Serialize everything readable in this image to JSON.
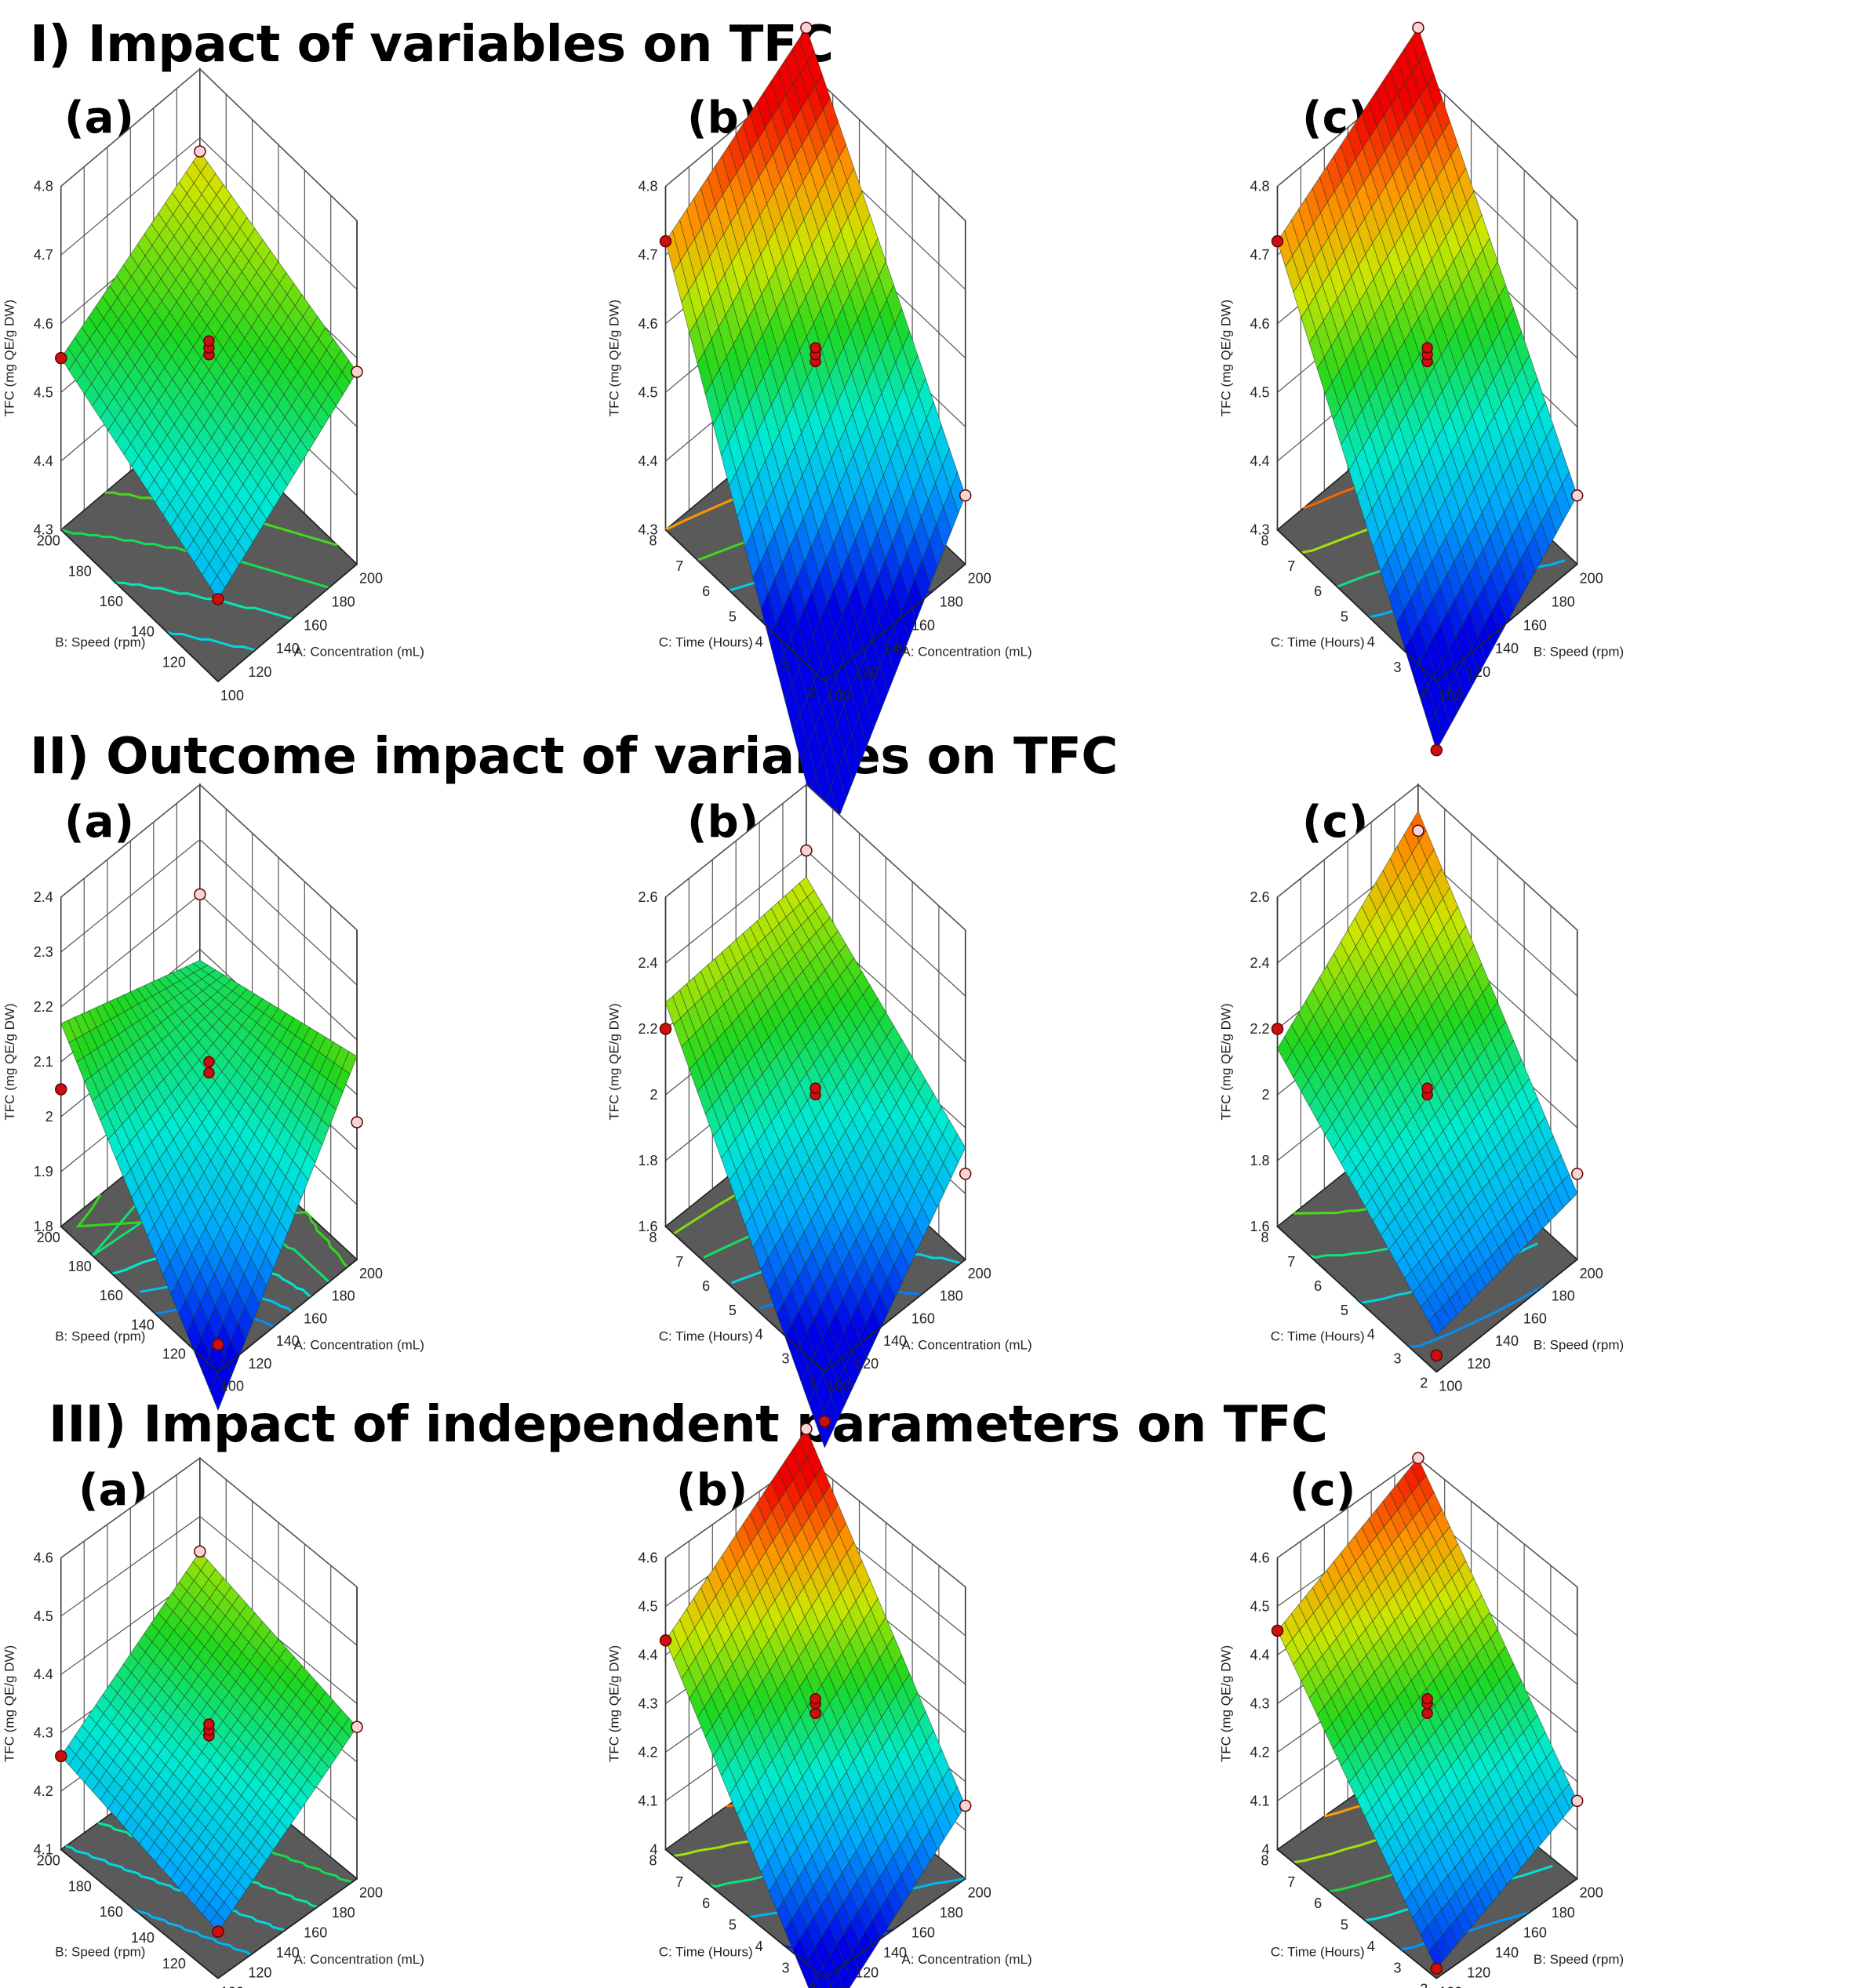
{
  "sections": [
    {
      "heading": "I) Impact of variables on TFC",
      "panels": [
        {
          "letter": "(a)",
          "x_label": "A: Concentration (mL)",
          "y_label": "B: Speed (rpm)",
          "z_label": "TFC (mg QE/g DW)",
          "x_ticks": [
            "100",
            "120",
            "140",
            "160",
            "180",
            "200"
          ],
          "y_ticks": [
            "120",
            "140",
            "160",
            "180",
            "200"
          ],
          "z_ticks": [
            "4.3",
            "4.4",
            "4.5",
            "4.6",
            "4.7",
            "4.8"
          ]
        },
        {
          "letter": "(b)",
          "x_label": "A: Concentration (mL)",
          "y_label": "C: Time (Hours)",
          "z_label": "TFC (mg QE/g DW)",
          "x_ticks": [
            "100",
            "120",
            "140",
            "160",
            "180",
            "200"
          ],
          "y_ticks": [
            "2",
            "3",
            "4",
            "5",
            "6",
            "7",
            "8"
          ],
          "z_ticks": [
            "4.3",
            "4.4",
            "4.5",
            "4.6",
            "4.7",
            "4.8"
          ]
        },
        {
          "letter": "(c)",
          "x_label": "B: Speed (rpm)",
          "y_label": "C: Time (Hours)",
          "z_label": "TFC (mg QE/g DW)",
          "x_ticks": [
            "100",
            "120",
            "140",
            "160",
            "180",
            "200"
          ],
          "y_ticks": [
            "2",
            "3",
            "4",
            "5",
            "6",
            "7",
            "8"
          ],
          "z_ticks": [
            "4.3",
            "4.4",
            "4.5",
            "4.6",
            "4.7",
            "4.8"
          ]
        }
      ]
    },
    {
      "heading": "II) Outcome impact of variables on TFC",
      "panels": [
        {
          "letter": "(a)",
          "x_label": "A: Concentration (mL)",
          "y_label": "B: Speed (rpm)",
          "z_label": "TFC (mg QE/g DW)",
          "x_ticks": [
            "100",
            "120",
            "140",
            "160",
            "180",
            "200"
          ],
          "y_ticks": [
            "120",
            "140",
            "160",
            "180",
            "200"
          ],
          "z_ticks": [
            "1.8",
            "1.9",
            "2",
            "2.1",
            "2.2",
            "2.3",
            "2.4"
          ]
        },
        {
          "letter": "(b)",
          "x_label": "A: Concentration (mL)",
          "y_label": "C: Time (Hours)",
          "z_label": "TFC (mg QE/g DW)",
          "x_ticks": [
            "100",
            "120",
            "140",
            "160",
            "180",
            "200"
          ],
          "y_ticks": [
            "2",
            "3",
            "4",
            "5",
            "6",
            "7",
            "8"
          ],
          "z_ticks": [
            "1.6",
            "1.8",
            "2",
            "2.2",
            "2.4",
            "2.6"
          ]
        },
        {
          "letter": "(c)",
          "x_label": "B: Speed (rpm)",
          "y_label": "C: Time (Hours)",
          "z_label": "TFC (mg QE/g DW)",
          "x_ticks": [
            "100",
            "120",
            "140",
            "160",
            "180",
            "200"
          ],
          "y_ticks": [
            "2",
            "3",
            "4",
            "5",
            "6",
            "7",
            "8"
          ],
          "z_ticks": [
            "1.6",
            "1.8",
            "2",
            "2.2",
            "2.4",
            "2.6"
          ]
        }
      ]
    },
    {
      "heading": "III) Impact of independent parameters on TFC",
      "panels": [
        {
          "letter": "(a)",
          "x_label": "A: Concentration (mL)",
          "y_label": "B: Speed (rpm)",
          "z_label": "TFC (mg QE/g DW)",
          "x_ticks": [
            "100",
            "120",
            "140",
            "160",
            "180",
            "200"
          ],
          "y_ticks": [
            "120",
            "140",
            "160",
            "180",
            "200"
          ],
          "z_ticks": [
            "4.1",
            "4.2",
            "4.3",
            "4.4",
            "4.5",
            "4.6"
          ]
        },
        {
          "letter": "(b)",
          "x_label": "A: Concentration (mL)",
          "y_label": "C: Time (Hours)",
          "z_label": "TFC (mg QE/g DW)",
          "x_ticks": [
            "100",
            "120",
            "140",
            "160",
            "180",
            "200"
          ],
          "y_ticks": [
            "2",
            "3",
            "4",
            "5",
            "6",
            "7",
            "8"
          ],
          "z_ticks": [
            "4",
            "4.1",
            "4.2",
            "4.3",
            "4.4",
            "4.5",
            "4.6"
          ]
        },
        {
          "letter": "(c)",
          "x_label": "B: Speed (rpm)",
          "y_label": "C: Time (Hours)",
          "z_label": "TFC (mg QE/g DW)",
          "x_ticks": [
            "100",
            "120",
            "140",
            "160",
            "180",
            "200"
          ],
          "y_ticks": [
            "2",
            "3",
            "4",
            "5",
            "6",
            "7",
            "8"
          ],
          "z_ticks": [
            "4",
            "4.1",
            "4.2",
            "4.3",
            "4.4",
            "4.5",
            "4.6"
          ]
        }
      ]
    }
  ],
  "chart_data": [
    {
      "type": "surface3d",
      "title": "I (a)",
      "xlim": [
        100,
        200
      ],
      "ylim": [
        100,
        200
      ],
      "zlim": [
        4.3,
        4.8
      ],
      "corners": {
        "x_lo_y_lo": 4.42,
        "x_hi_y_lo": 4.58,
        "x_lo_y_hi": 4.55,
        "x_hi_y_hi": 4.68
      },
      "curvature": 0,
      "center_points": [
        4.58,
        4.59,
        4.6
      ]
    },
    {
      "type": "surface3d",
      "title": "I (b)",
      "xlim": [
        100,
        200
      ],
      "ylim": [
        2,
        8
      ],
      "zlim": [
        4.3,
        4.8
      ],
      "corners": {
        "x_lo_y_lo": 4.05,
        "x_hi_y_lo": 4.4,
        "x_lo_y_hi": 4.72,
        "x_hi_y_hi": 4.86
      },
      "curvature": 0,
      "center_points": [
        4.57,
        4.58,
        4.59
      ]
    },
    {
      "type": "surface3d",
      "title": "I (c)",
      "xlim": [
        100,
        200
      ],
      "ylim": [
        2,
        8
      ],
      "zlim": [
        4.3,
        4.8
      ],
      "corners": {
        "x_lo_y_lo": 4.2,
        "x_hi_y_lo": 4.4,
        "x_lo_y_hi": 4.72,
        "x_hi_y_hi": 4.86
      },
      "curvature": 0,
      "center_points": [
        4.57,
        4.58,
        4.59
      ]
    },
    {
      "type": "surface3d",
      "title": "II (a)",
      "xlim": [
        100,
        200
      ],
      "ylim": [
        100,
        200
      ],
      "zlim": [
        1.8,
        2.4
      ],
      "corners": {
        "x_lo_y_lo": 1.85,
        "x_hi_y_lo": 2.05,
        "x_lo_y_hi": 2.05,
        "x_hi_y_hi": 2.2
      },
      "curvature": -0.12,
      "center_points": [
        2.11,
        2.13
      ]
    },
    {
      "type": "surface3d",
      "title": "II (b)",
      "xlim": [
        100,
        200
      ],
      "ylim": [
        2,
        8
      ],
      "zlim": [
        1.6,
        2.6
      ],
      "corners": {
        "x_lo_y_lo": 1.45,
        "x_hi_y_lo": 1.86,
        "x_lo_y_hi": 2.2,
        "x_hi_y_hi": 2.4
      },
      "curvature": -0.08,
      "center_points": [
        2.05,
        2.07
      ]
    },
    {
      "type": "surface3d",
      "title": "II (c)",
      "xlim": [
        100,
        200
      ],
      "ylim": [
        2,
        8
      ],
      "zlim": [
        1.6,
        2.6
      ],
      "corners": {
        "x_lo_y_lo": 1.65,
        "x_hi_y_lo": 1.86,
        "x_lo_y_hi": 2.2,
        "x_hi_y_hi": 2.46
      },
      "curvature": 0.06,
      "center_points": [
        2.05,
        2.07
      ]
    },
    {
      "type": "surface3d",
      "title": "III (a)",
      "xlim": [
        100,
        200
      ],
      "ylim": [
        100,
        200
      ],
      "zlim": [
        4.1,
        4.6
      ],
      "corners": {
        "x_lo_y_lo": 4.18,
        "x_hi_y_lo": 4.36,
        "x_lo_y_hi": 4.26,
        "x_hi_y_hi": 4.44
      },
      "curvature": 0,
      "center_points": [
        4.32,
        4.33,
        4.34
      ]
    },
    {
      "type": "surface3d",
      "title": "III (b)",
      "xlim": [
        100,
        200
      ],
      "ylim": [
        2,
        8
      ],
      "zlim": [
        4,
        4.6
      ],
      "corners": {
        "x_lo_y_lo": 3.9,
        "x_hi_y_lo": 4.15,
        "x_lo_y_hi": 4.43,
        "x_hi_y_hi": 4.66
      },
      "curvature": 0,
      "center_points": [
        4.31,
        4.33,
        4.34
      ]
    },
    {
      "type": "surface3d",
      "title": "III (c)",
      "xlim": [
        100,
        200
      ],
      "ylim": [
        2,
        8
      ],
      "zlim": [
        4,
        4.6
      ],
      "corners": {
        "x_lo_y_lo": 4.02,
        "x_hi_y_lo": 4.16,
        "x_lo_y_hi": 4.45,
        "x_hi_y_hi": 4.6
      },
      "curvature": 0,
      "center_points": [
        4.31,
        4.33,
        4.34
      ]
    }
  ]
}
